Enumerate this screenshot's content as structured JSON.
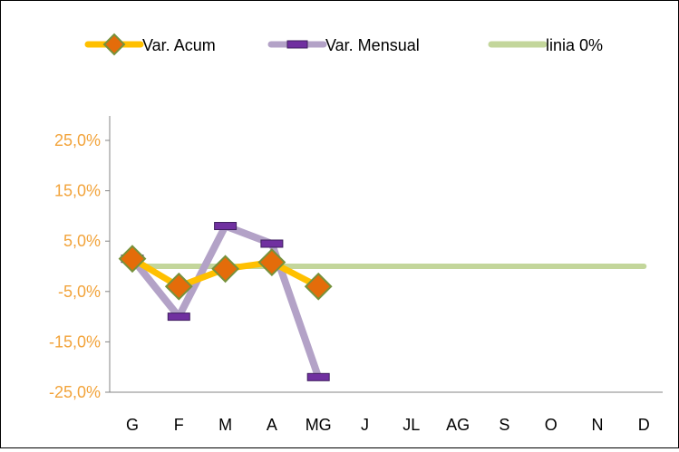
{
  "chart_data": {
    "type": "line",
    "categories": [
      "G",
      "F",
      "M",
      "A",
      "MG",
      "J",
      "JL",
      "AG",
      "S",
      "O",
      "N",
      "D"
    ],
    "series": [
      {
        "name": "Var. Acum",
        "color": "#ffc000",
        "marker": "diamond",
        "marker_color": "#e46c0a",
        "values": [
          1.5,
          -4.0,
          -0.5,
          0.8,
          -4.0,
          null,
          null,
          null,
          null,
          null,
          null,
          null
        ]
      },
      {
        "name": "Var. Mensual",
        "color": "#b3a2c7",
        "marker": "dash",
        "marker_color": "#7030a0",
        "values": [
          1.5,
          -10.0,
          8.0,
          4.5,
          -22.0,
          null,
          null,
          null,
          null,
          null,
          null,
          null
        ]
      },
      {
        "name": "linia 0%",
        "color": "#c3d69b",
        "marker": "none",
        "values": [
          0,
          0,
          0,
          0,
          0,
          0,
          0,
          0,
          0,
          0,
          0,
          0
        ]
      }
    ],
    "y_ticks": [
      "25,0%",
      "15,0%",
      "5,0%",
      "-5,0%",
      "-15,0%",
      "-25,0%"
    ],
    "ylim": [
      -25,
      25
    ],
    "legend_position": "top",
    "grid": false
  }
}
